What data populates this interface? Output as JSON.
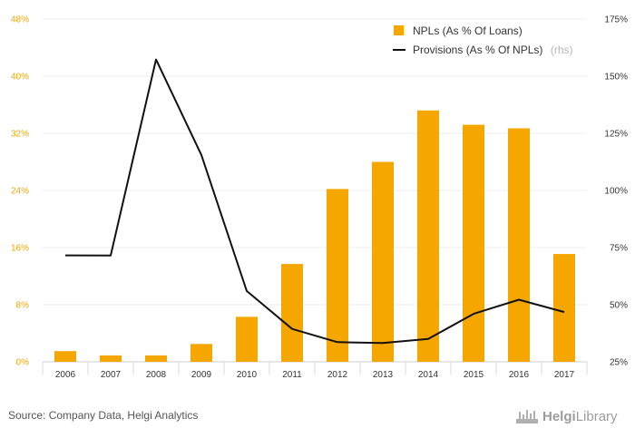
{
  "chart_data": {
    "type": "bar",
    "categories": [
      "2006",
      "2007",
      "2008",
      "2009",
      "2010",
      "2011",
      "2012",
      "2013",
      "2014",
      "2015",
      "2016",
      "2017"
    ],
    "series": [
      {
        "name": "NPLs (As % Of Loans)",
        "type": "bar",
        "axis": "left",
        "color": "#f5a700",
        "values": [
          1.5,
          0.9,
          0.9,
          2.5,
          6.3,
          13.7,
          24.2,
          28.0,
          35.2,
          33.2,
          32.7,
          15.1
        ]
      },
      {
        "name": "Provisions (As % Of NPLs)",
        "type": "line",
        "axis": "right",
        "color": "#111111",
        "values": [
          71.6,
          71.5,
          157.3,
          115.5,
          56.0,
          39.4,
          33.6,
          33.2,
          35.0,
          46.0,
          52.2,
          46.8
        ]
      }
    ],
    "legend_note": "(rhs)",
    "y_left": {
      "lim": [
        0,
        48
      ],
      "ticks": [
        0,
        8,
        16,
        24,
        32,
        40,
        48
      ],
      "tick_labels": [
        "0%",
        "8%",
        "16%",
        "24%",
        "32%",
        "40%",
        "48%"
      ]
    },
    "y_right": {
      "lim": [
        25,
        175
      ],
      "ticks": [
        25,
        50,
        75,
        100,
        125,
        150,
        175
      ],
      "tick_labels": [
        "25%",
        "50%",
        "75%",
        "100%",
        "125%",
        "150%",
        "175%"
      ]
    },
    "grid": true,
    "legend_position": "top-right"
  },
  "footer": {
    "source": "Source: Company Data, Helgi Analytics"
  },
  "brand": {
    "part1": "Helgi",
    "part2": "Library",
    "icon": "helgi-library-logo-icon"
  }
}
